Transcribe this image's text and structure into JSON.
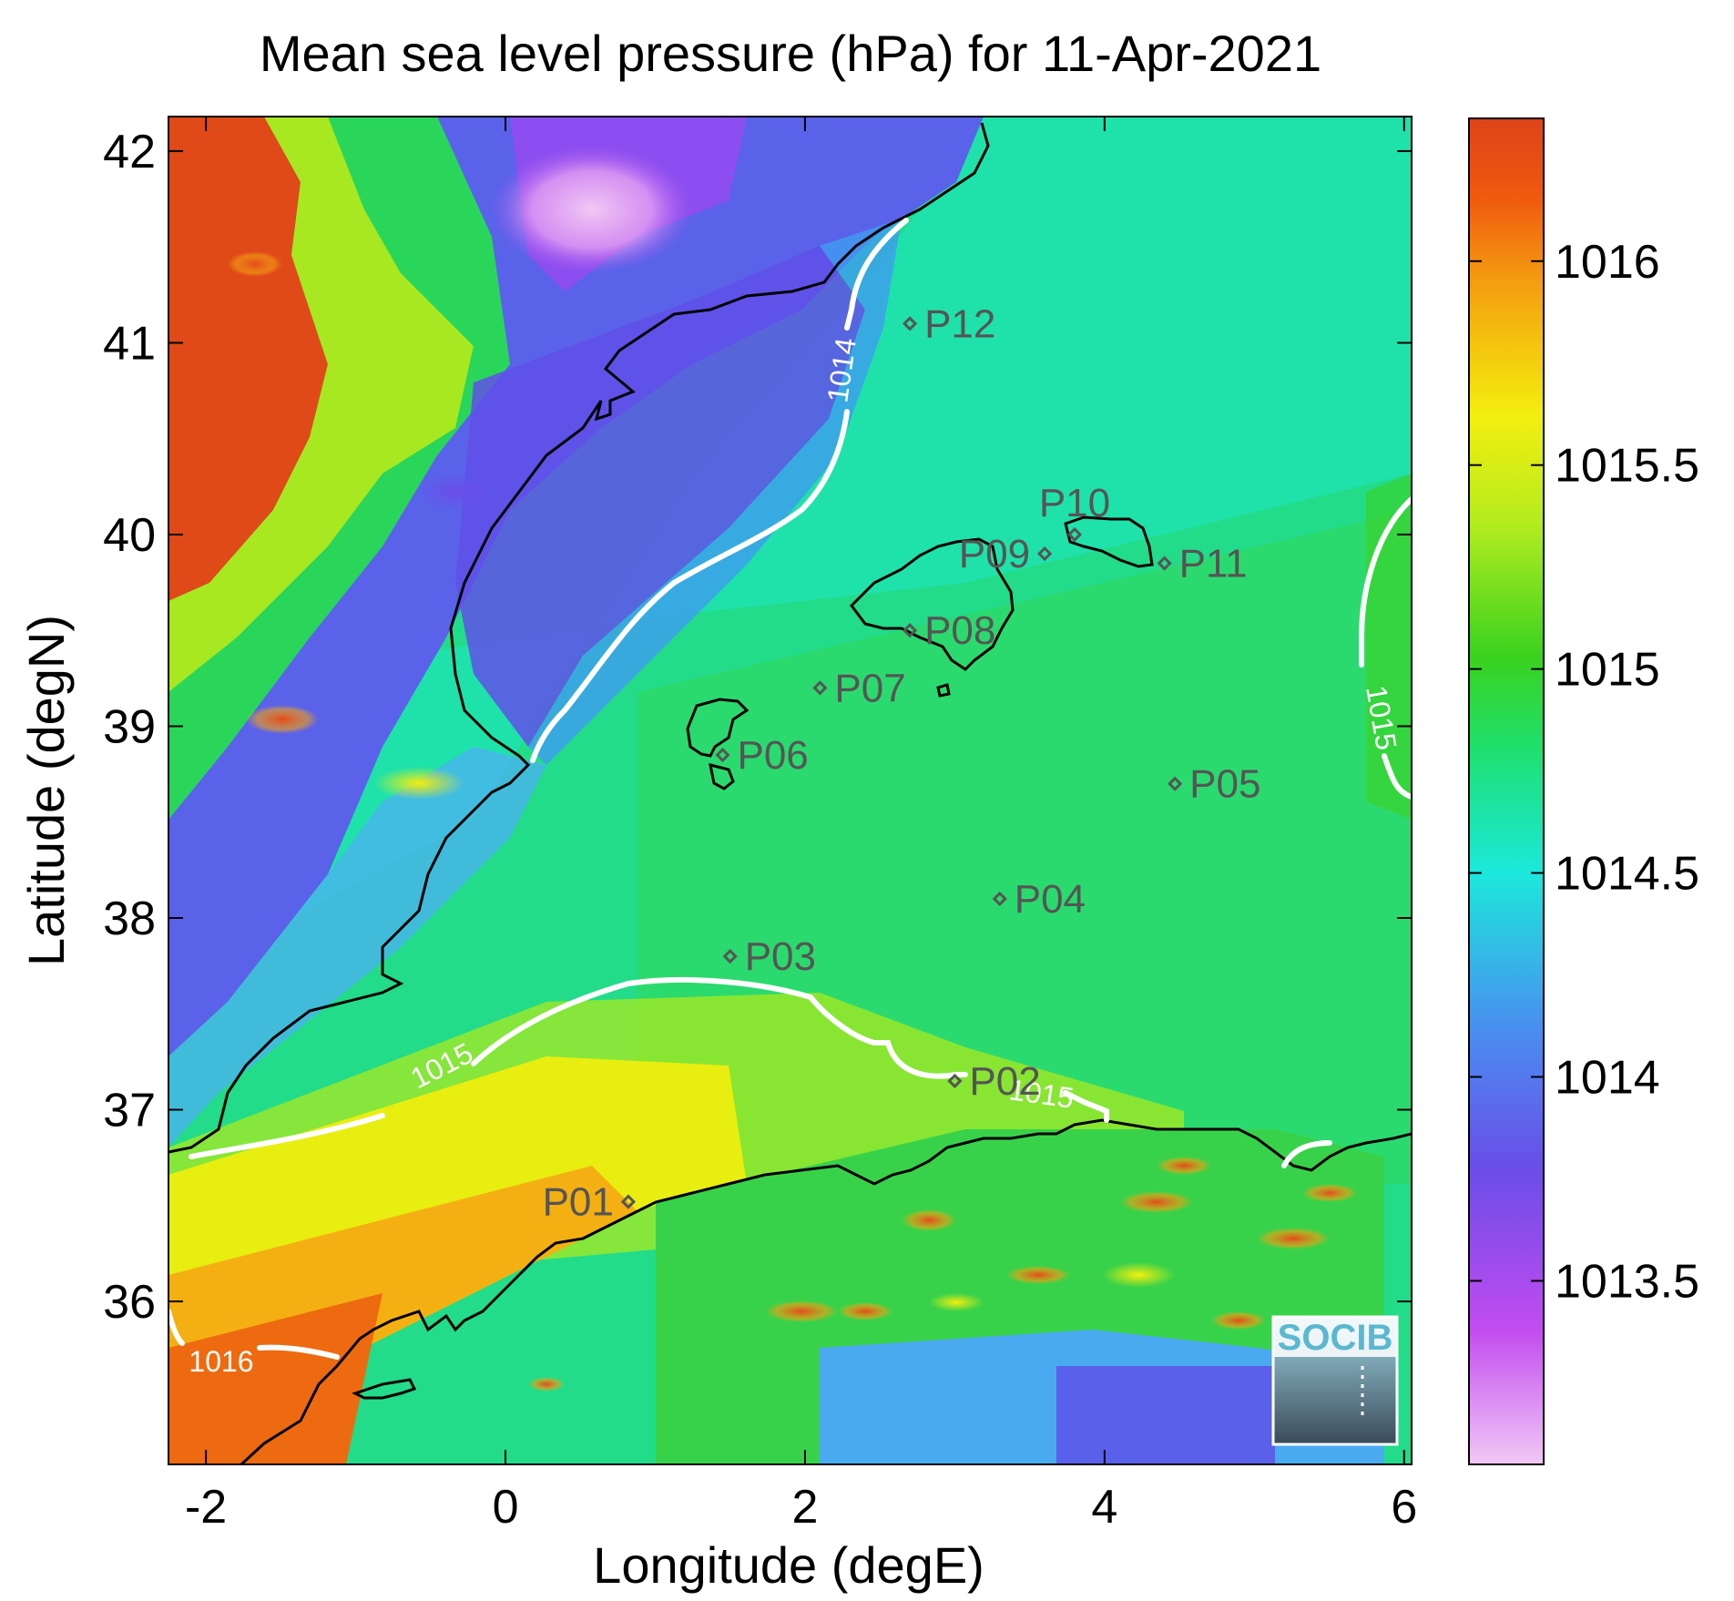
{
  "title": "Mean sea level pressure (hPa) for 11-Apr-2021",
  "axes": {
    "xlabel": "Longitude (degE)",
    "ylabel": "Latitude (degN)",
    "xlim": [
      -2.25,
      6.05
    ],
    "ylim": [
      35.15,
      42.18
    ],
    "xticks": [
      -2,
      0,
      2,
      4,
      6
    ],
    "yticks": [
      36,
      37,
      38,
      39,
      40,
      41,
      42
    ],
    "xtick_labels": [
      "-2",
      "0",
      "2",
      "4",
      "6"
    ],
    "ytick_labels": [
      "36",
      "37",
      "38",
      "39",
      "40",
      "41",
      "42"
    ]
  },
  "colorbar": {
    "range": [
      1013.05,
      1016.35
    ],
    "ticks": [
      1013.5,
      1014,
      1014.5,
      1015,
      1015.5,
      1016
    ],
    "tick_labels": [
      "1013.5",
      "1014",
      "1014.5",
      "1015",
      "1015.5",
      "1016"
    ],
    "colormap": [
      "#f2c8f5",
      "#c24cf0",
      "#6a4de8",
      "#4a8cf0",
      "#1ce8dc",
      "#1ee070",
      "#3ad21e",
      "#b5ec1e",
      "#f4ee0e",
      "#f49c10",
      "#f05a0e",
      "#dc4418"
    ]
  },
  "stations": [
    {
      "label": "P01",
      "lon": 0.82,
      "lat": 36.52,
      "label_side": "left"
    },
    {
      "label": "P02",
      "lon": 3.0,
      "lat": 37.15,
      "label_side": "right"
    },
    {
      "label": "P03",
      "lon": 1.5,
      "lat": 37.8,
      "label_side": "right"
    },
    {
      "label": "P04",
      "lon": 3.3,
      "lat": 38.1,
      "label_side": "right"
    },
    {
      "label": "P05",
      "lon": 4.47,
      "lat": 38.7,
      "label_side": "right"
    },
    {
      "label": "P06",
      "lon": 1.45,
      "lat": 38.85,
      "label_side": "right"
    },
    {
      "label": "P07",
      "lon": 2.1,
      "lat": 39.2,
      "label_side": "right"
    },
    {
      "label": "P08",
      "lon": 2.7,
      "lat": 39.5,
      "label_side": "right"
    },
    {
      "label": "P09",
      "lon": 3.6,
      "lat": 39.9,
      "label_side": "left"
    },
    {
      "label": "P10",
      "lon": 3.8,
      "lat": 40.0,
      "label_side": "above"
    },
    {
      "label": "P11",
      "lon": 4.4,
      "lat": 39.85,
      "label_side": "right"
    },
    {
      "label": "P12",
      "lon": 2.7,
      "lat": 41.1,
      "label_side": "right"
    }
  ],
  "contours": [
    {
      "level": "1014",
      "label_lon": 2.32,
      "label_lat": 40.75
    },
    {
      "level": "1015",
      "label_lon": 0.3,
      "label_lat": 37.1
    },
    {
      "level": "1015",
      "label_lon": 3.6,
      "label_lat": 37.0
    },
    {
      "level": "1015",
      "label_lon": 5.85,
      "label_lat": 38.9
    },
    {
      "level": "1016",
      "label_lon": -1.6,
      "label_lat": 35.65
    }
  ],
  "colors": {
    "contour": "#ffffff",
    "coastline": "#000000",
    "station_marker": "#555555"
  },
  "logo_text": "SOCIB"
}
